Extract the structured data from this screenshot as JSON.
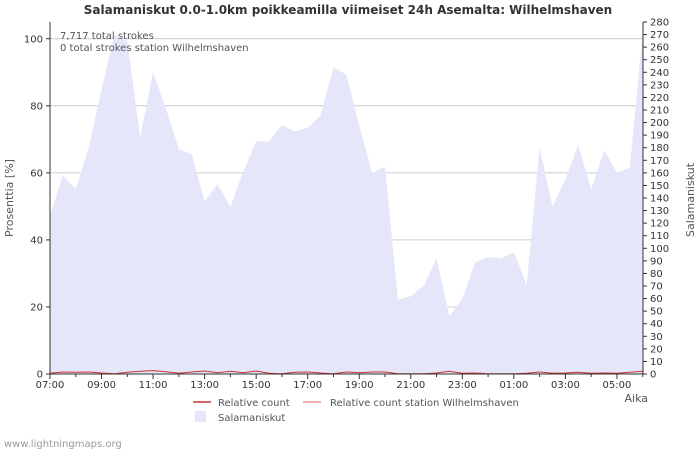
{
  "chart_data": {
    "type": "area",
    "title": "Salamaniskut 0.0-1.0km poikkeamilla viimeiset 24h Asemalta: Wilhelmshaven",
    "xlabel": "Aika",
    "ylabel_left": "Prosenttia   [%]",
    "ylabel_right": "Salamaniskut",
    "ylim_left": [
      0,
      105
    ],
    "ylim_right": [
      0,
      280
    ],
    "left_ticks": [
      "0",
      "20",
      "40",
      "60",
      "80",
      "100"
    ],
    "right_ticks": [
      "0",
      "10",
      "20",
      "30",
      "40",
      "50",
      "60",
      "70",
      "80",
      "90",
      "100",
      "110",
      "120",
      "130",
      "140",
      "150",
      "160",
      "170",
      "180",
      "190",
      "200",
      "210",
      "220",
      "230",
      "240",
      "250",
      "260",
      "270",
      "280"
    ],
    "x_tick_labels": [
      "07:00",
      "09:00",
      "11:00",
      "13:00",
      "15:00",
      "17:00",
      "19:00",
      "21:00",
      "23:00",
      "01:00",
      "03:00",
      "05:00"
    ],
    "annotations": [
      "7,717 total strokes",
      "0 total strokes station Wilhelmshaven"
    ],
    "series": [
      {
        "name": "Salamaniskut",
        "color": "#e6e6fa",
        "axis": "right",
        "values": [
          126,
          158,
          147,
          180,
          226,
          270,
          265,
          188,
          240,
          211,
          179,
          175,
          137,
          151,
          133,
          161,
          185,
          185,
          198,
          193,
          196,
          206,
          244,
          238,
          198,
          160,
          165,
          59,
          62,
          70,
          92,
          46,
          60,
          89,
          93,
          92,
          97,
          71,
          180,
          133,
          155,
          182,
          147,
          178,
          160,
          164,
          272
        ]
      },
      {
        "name": "Relative count",
        "color": "#cc3333",
        "axis": "left",
        "values": [
          0.2,
          0.6,
          0.5,
          0.6,
          0.3,
          0.1,
          0.5,
          0.8,
          1.0,
          0.7,
          0.2,
          0.6,
          0.9,
          0.4,
          0.8,
          0.4,
          0.9,
          0.2,
          0.1,
          0.5,
          0.6,
          0.3,
          0.1,
          0.6,
          0.4,
          0.6,
          0.6,
          0.1,
          0.1,
          0.1,
          0.3,
          0.8,
          0.2,
          0.3,
          0.1,
          0.1,
          0.1,
          0.2,
          0.6,
          0.2,
          0.3,
          0.5,
          0.2,
          0.3,
          0.2,
          0.5,
          0.8
        ]
      },
      {
        "name": "Relative count station Wilhelmshaven",
        "color": "#ee9999",
        "axis": "left",
        "values": [
          0,
          0,
          0,
          0,
          0,
          0,
          0,
          0,
          0,
          0,
          0,
          0,
          0,
          0,
          0,
          0,
          0,
          0,
          0,
          0,
          0,
          0,
          0,
          0,
          0,
          0,
          0,
          0,
          0,
          0,
          0,
          0,
          0,
          0,
          0,
          0,
          0,
          0,
          0,
          0,
          0,
          0,
          0,
          0,
          0,
          0,
          0
        ]
      }
    ],
    "legend": [
      "Relative count",
      "Relative count station Wilhelmshaven",
      "Salamaniskut"
    ]
  },
  "footer": "www.lightningmaps.org"
}
